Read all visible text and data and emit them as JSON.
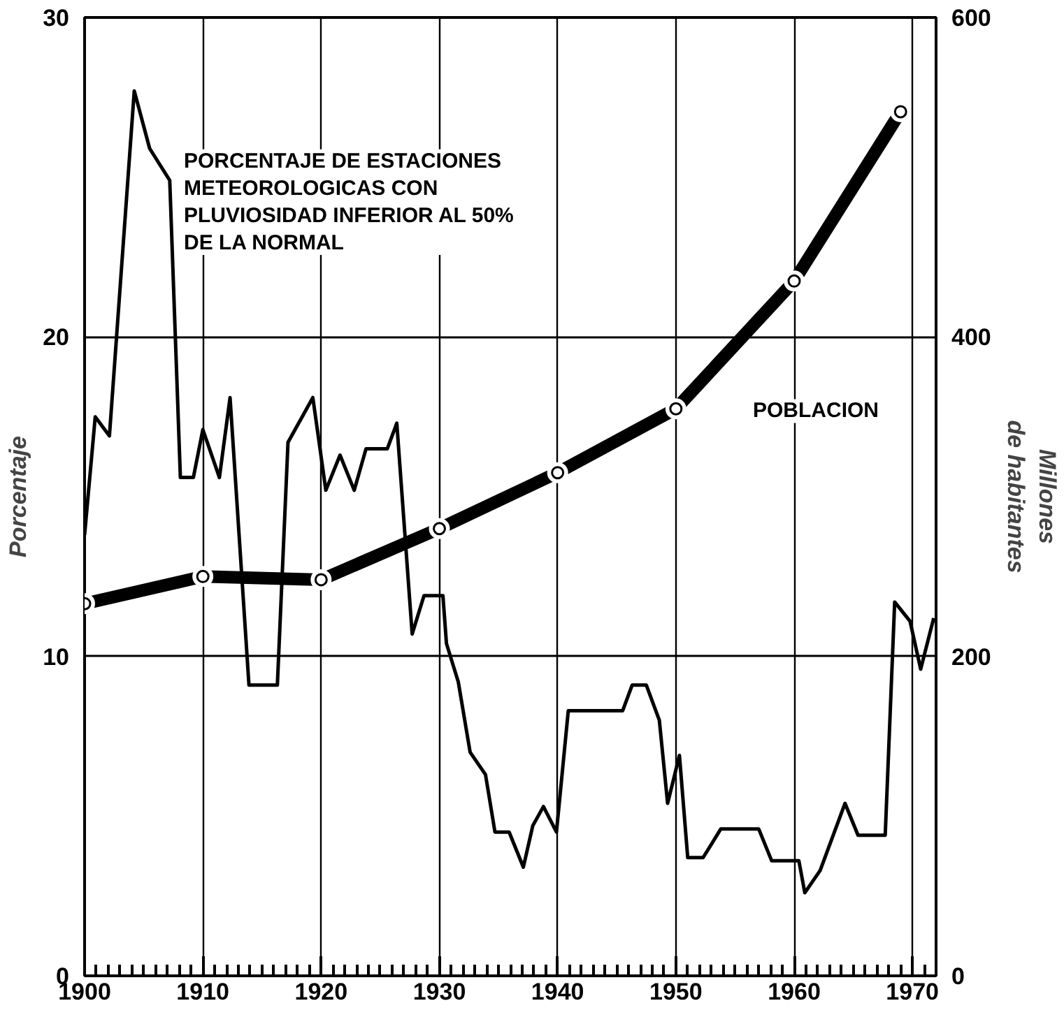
{
  "chart_data": {
    "type": "line",
    "ylabel": "Porcentaje",
    "y2label": "Millones\nde habitantes",
    "xlim": [
      1900,
      1972
    ],
    "xticks": [
      1900,
      1910,
      1920,
      1930,
      1940,
      1950,
      1960,
      1970
    ],
    "ylim": [
      0,
      30
    ],
    "yticks": [
      0,
      10,
      20,
      30
    ],
    "y2lim": [
      0,
      600
    ],
    "y2ticks": [
      0,
      200,
      400,
      600
    ],
    "grid": true,
    "series": [
      {
        "name": "PORCENTAJE DE ESTACIONES\nMETEOROLOGICAS CON\nPLUVIOSIDAD INFERIOR AL 50%\nDE LA NORMAL",
        "color": "#000000",
        "marker": "none",
        "x": [
          1900,
          1900.9,
          1902.1,
          1904.2,
          1905.5,
          1907.2,
          1908.1,
          1909.2,
          1910,
          1911.4,
          1912.3,
          1913.9,
          1916.3,
          1917.2,
          1919.3,
          1920.4,
          1921.6,
          1922.8,
          1923.8,
          1925.6,
          1926.4,
          1927.7,
          1928.7,
          1930.3,
          1930.6,
          1931.6,
          1932.6,
          1933.9,
          1934.7,
          1935.9,
          1937.1,
          1937.9,
          1938.8,
          1939.9,
          1940.9,
          1945.5,
          1946.3,
          1947.5,
          1948.6,
          1949.3,
          1950.3,
          1951,
          1952.3,
          1953.8,
          1957,
          1958.1,
          1960.4,
          1960.9,
          1962.2,
          1964.3,
          1965.4,
          1967.7,
          1968.5,
          1969.8,
          1970.7,
          1971.8
        ],
        "values": [
          13.8,
          17.5,
          16.9,
          27.7,
          25.9,
          24.9,
          15.6,
          15.6,
          17.1,
          15.6,
          18.1,
          9.1,
          9.1,
          16.7,
          18.1,
          15.2,
          16.3,
          15.2,
          16.5,
          16.5,
          17.3,
          10.7,
          11.9,
          11.9,
          10.4,
          9.2,
          7,
          6.3,
          4.5,
          4.5,
          3.4,
          4.7,
          5.3,
          4.5,
          8.3,
          8.3,
          9.1,
          9.1,
          8,
          5.4,
          6.9,
          3.7,
          3.7,
          4.6,
          4.6,
          3.6,
          3.6,
          2.6,
          3.3,
          5.4,
          4.4,
          4.4,
          11.7,
          11.1,
          9.6,
          11.2
        ]
      },
      {
        "name": "POBLACION",
        "color": "#000000",
        "axis": "y2",
        "marker": "circle",
        "x": [
          1900,
          1910,
          1920,
          1930,
          1940,
          1950,
          1960,
          1969
        ],
        "values": [
          233,
          250,
          248,
          280,
          315,
          355,
          435,
          541
        ]
      }
    ]
  }
}
